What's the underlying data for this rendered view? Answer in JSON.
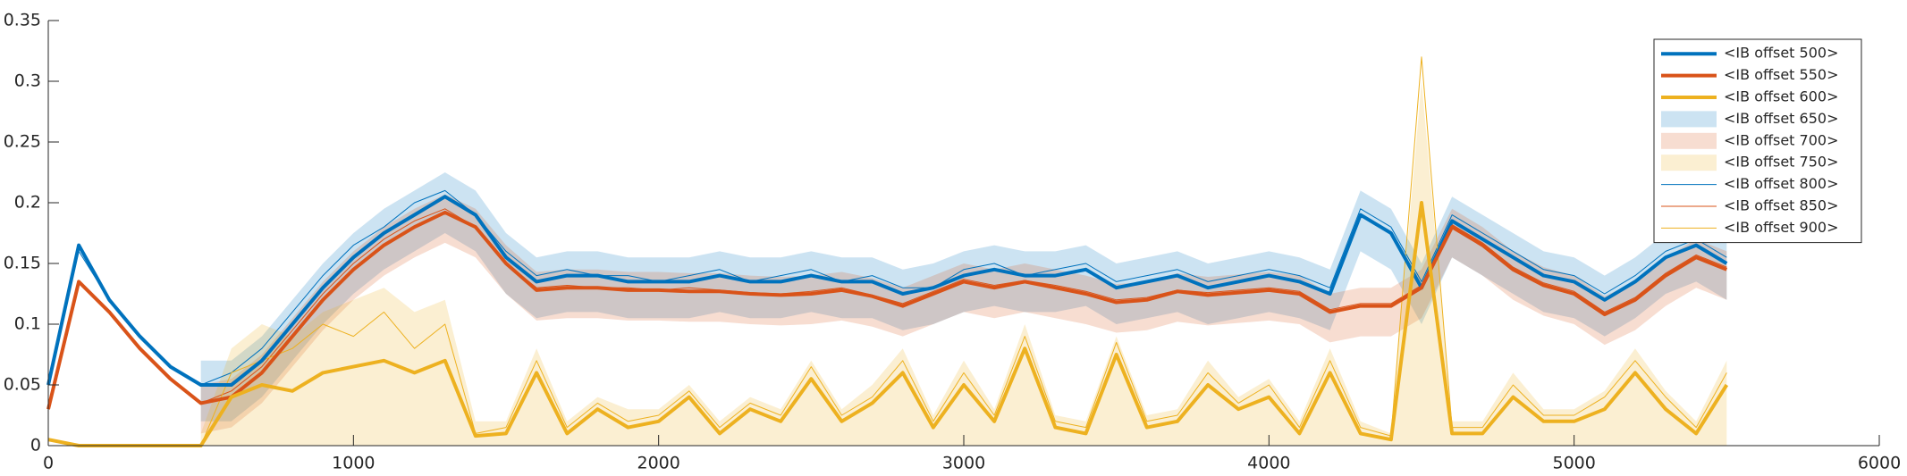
{
  "chart_data": {
    "type": "line",
    "x": [
      0,
      100,
      200,
      300,
      400,
      500,
      600,
      700,
      800,
      900,
      1000,
      1100,
      1200,
      1300,
      1400,
      1500,
      1600,
      1700,
      1800,
      1900,
      2000,
      2100,
      2200,
      2300,
      2400,
      2500,
      2600,
      2700,
      2800,
      2900,
      3000,
      3100,
      3200,
      3300,
      3400,
      3500,
      3600,
      3700,
      3800,
      3900,
      4000,
      4100,
      4200,
      4300,
      4400,
      4500,
      4600,
      4700,
      4800,
      4900,
      5000,
      5100,
      5200,
      5300,
      5400,
      5500
    ],
    "xlim": [
      0,
      6000
    ],
    "xticks": [
      0,
      1000,
      2000,
      3000,
      4000,
      5000,
      6000
    ],
    "ylim": [
      0,
      0.35
    ],
    "yticks": [
      0,
      0.05,
      0.1,
      0.15,
      0.2,
      0.25,
      0.3,
      0.35
    ],
    "legend": "upper right",
    "series": [
      {
        "name": "<IB offset 500>",
        "color": "#0072bd",
        "style": "line",
        "width": 4,
        "values": [
          0.05,
          0.165,
          0.12,
          0.09,
          0.065,
          0.05,
          0.05,
          0.07,
          0.1,
          0.13,
          0.155,
          0.175,
          0.19,
          0.205,
          0.19,
          0.155,
          0.135,
          0.14,
          0.14,
          0.135,
          0.135,
          0.135,
          0.14,
          0.135,
          0.135,
          0.14,
          0.135,
          0.135,
          0.125,
          0.13,
          0.14,
          0.145,
          0.14,
          0.14,
          0.145,
          0.13,
          0.135,
          0.14,
          0.13,
          0.135,
          0.14,
          0.135,
          0.125,
          0.19,
          0.175,
          0.13,
          0.185,
          0.17,
          0.155,
          0.14,
          0.135,
          0.12,
          0.135,
          0.155,
          0.165,
          0.15
        ]
      },
      {
        "name": "<IB offset 550>",
        "color": "#d95319",
        "style": "line",
        "width": 4,
        "values": [
          0.03,
          0.135,
          0.11,
          0.08,
          0.055,
          0.035,
          0.04,
          0.06,
          0.09,
          0.12,
          0.145,
          0.165,
          0.18,
          0.192,
          0.18,
          0.15,
          0.128,
          0.13,
          0.13,
          0.128,
          0.128,
          0.127,
          0.127,
          0.125,
          0.124,
          0.125,
          0.128,
          0.123,
          0.115,
          0.125,
          0.135,
          0.13,
          0.135,
          0.13,
          0.125,
          0.118,
          0.12,
          0.127,
          0.124,
          0.126,
          0.128,
          0.125,
          0.11,
          0.115,
          0.115,
          0.13,
          0.18,
          0.165,
          0.145,
          0.132,
          0.125,
          0.108,
          0.12,
          0.14,
          0.155,
          0.145
        ]
      },
      {
        "name": "<IB offset 600>",
        "color": "#edb120",
        "style": "line",
        "width": 4,
        "values": [
          0.005,
          0,
          0,
          0,
          0,
          0,
          0.04,
          0.05,
          0.045,
          0.06,
          0.065,
          0.07,
          0.06,
          0.07,
          0.008,
          0.01,
          0.06,
          0.01,
          0.03,
          0.015,
          0.02,
          0.04,
          0.01,
          0.03,
          0.02,
          0.055,
          0.02,
          0.035,
          0.06,
          0.015,
          0.05,
          0.02,
          0.08,
          0.015,
          0.01,
          0.075,
          0.015,
          0.02,
          0.05,
          0.03,
          0.04,
          0.01,
          0.06,
          0.01,
          0.005,
          0.2,
          0.01,
          0.01,
          0.04,
          0.02,
          0.02,
          0.03,
          0.06,
          0.03,
          0.01,
          0.05
        ]
      },
      {
        "name": "<IB offset 650>",
        "color": "#0072bd",
        "style": "band",
        "alpha": 0.2,
        "high": [
          null,
          null,
          null,
          null,
          null,
          0.07,
          0.07,
          0.09,
          0.12,
          0.15,
          0.175,
          0.195,
          0.21,
          0.225,
          0.21,
          0.175,
          0.155,
          0.16,
          0.16,
          0.155,
          0.155,
          0.155,
          0.16,
          0.155,
          0.155,
          0.16,
          0.155,
          0.155,
          0.145,
          0.15,
          0.16,
          0.165,
          0.16,
          0.16,
          0.165,
          0.15,
          0.155,
          0.16,
          0.15,
          0.155,
          0.16,
          0.155,
          0.145,
          0.21,
          0.195,
          0.15,
          0.205,
          0.19,
          0.175,
          0.16,
          0.155,
          0.14,
          0.155,
          0.175,
          0.185,
          0.17
        ],
        "low": [
          null,
          null,
          null,
          null,
          null,
          0.02,
          0.02,
          0.04,
          0.07,
          0.1,
          0.125,
          0.145,
          0.16,
          0.175,
          0.16,
          0.125,
          0.105,
          0.11,
          0.11,
          0.105,
          0.105,
          0.105,
          0.11,
          0.105,
          0.105,
          0.11,
          0.105,
          0.105,
          0.095,
          0.1,
          0.11,
          0.115,
          0.11,
          0.11,
          0.115,
          0.1,
          0.105,
          0.11,
          0.1,
          0.105,
          0.11,
          0.105,
          0.095,
          0.16,
          0.145,
          0.1,
          0.155,
          0.14,
          0.125,
          0.11,
          0.105,
          0.09,
          0.105,
          0.125,
          0.135,
          0.12
        ]
      },
      {
        "name": "<IB offset 700>",
        "color": "#d95319",
        "style": "band",
        "alpha": 0.2,
        "high": [
          null,
          null,
          null,
          null,
          null,
          0.05,
          0.055,
          0.075,
          0.105,
          0.135,
          0.16,
          0.18,
          0.195,
          0.207,
          0.195,
          0.165,
          0.143,
          0.145,
          0.145,
          0.143,
          0.143,
          0.142,
          0.142,
          0.14,
          0.139,
          0.14,
          0.143,
          0.138,
          0.13,
          0.14,
          0.15,
          0.145,
          0.15,
          0.145,
          0.14,
          0.133,
          0.135,
          0.142,
          0.139,
          0.141,
          0.143,
          0.14,
          0.125,
          0.13,
          0.13,
          0.145,
          0.195,
          0.18,
          0.16,
          0.147,
          0.14,
          0.123,
          0.135,
          0.155,
          0.17,
          0.16
        ],
        "low": [
          null,
          null,
          null,
          null,
          null,
          0.01,
          0.015,
          0.035,
          0.065,
          0.095,
          0.12,
          0.14,
          0.155,
          0.167,
          0.155,
          0.125,
          0.103,
          0.105,
          0.105,
          0.103,
          0.103,
          0.102,
          0.102,
          0.1,
          0.099,
          0.1,
          0.103,
          0.098,
          0.09,
          0.1,
          0.11,
          0.105,
          0.11,
          0.105,
          0.1,
          0.093,
          0.095,
          0.102,
          0.099,
          0.101,
          0.103,
          0.1,
          0.085,
          0.09,
          0.09,
          0.105,
          0.155,
          0.14,
          0.12,
          0.107,
          0.1,
          0.083,
          0.095,
          0.115,
          0.13,
          0.12
        ]
      },
      {
        "name": "<IB offset 750>",
        "color": "#edb120",
        "style": "band",
        "alpha": 0.2,
        "high": [
          null,
          null,
          null,
          null,
          null,
          0.01,
          0.08,
          0.1,
          0.09,
          0.11,
          0.12,
          0.13,
          0.11,
          0.12,
          0.02,
          0.02,
          0.08,
          0.02,
          0.04,
          0.03,
          0.03,
          0.05,
          0.02,
          0.04,
          0.03,
          0.07,
          0.03,
          0.05,
          0.08,
          0.025,
          0.07,
          0.03,
          0.1,
          0.025,
          0.02,
          0.09,
          0.025,
          0.03,
          0.07,
          0.04,
          0.055,
          0.02,
          0.08,
          0.02,
          0.01,
          0.3,
          0.02,
          0.02,
          0.06,
          0.03,
          0.03,
          0.045,
          0.08,
          0.045,
          0.02,
          0.07
        ],
        "low": [
          null,
          null,
          null,
          null,
          null,
          0,
          0,
          0,
          0,
          0,
          0,
          0,
          0,
          0,
          0,
          0,
          0,
          0,
          0,
          0,
          0,
          0,
          0,
          0,
          0,
          0,
          0,
          0,
          0,
          0,
          0,
          0,
          0,
          0,
          0,
          0,
          0,
          0,
          0,
          0,
          0,
          0,
          0,
          0,
          0,
          0,
          0,
          0,
          0,
          0,
          0,
          0,
          0,
          0,
          0,
          0
        ]
      },
      {
        "name": "<IB offset 800>",
        "color": "#0072bd",
        "style": "line",
        "width": 1,
        "values": [
          0.05,
          0.16,
          0.12,
          0.09,
          0.065,
          0.05,
          0.06,
          0.08,
          0.11,
          0.14,
          0.165,
          0.18,
          0.2,
          0.21,
          0.19,
          0.16,
          0.14,
          0.145,
          0.14,
          0.14,
          0.135,
          0.14,
          0.145,
          0.135,
          0.14,
          0.145,
          0.135,
          0.14,
          0.13,
          0.13,
          0.145,
          0.15,
          0.14,
          0.145,
          0.15,
          0.135,
          0.14,
          0.145,
          0.135,
          0.14,
          0.145,
          0.14,
          0.13,
          0.195,
          0.18,
          0.135,
          0.19,
          0.175,
          0.16,
          0.145,
          0.14,
          0.125,
          0.14,
          0.16,
          0.17,
          0.155
        ]
      },
      {
        "name": "<IB offset 850>",
        "color": "#d95319",
        "style": "line",
        "width": 1,
        "values": [
          0.03,
          0.135,
          0.11,
          0.08,
          0.055,
          0.035,
          0.045,
          0.065,
          0.095,
          0.125,
          0.15,
          0.17,
          0.185,
          0.195,
          0.18,
          0.15,
          0.13,
          0.132,
          0.13,
          0.13,
          0.128,
          0.13,
          0.128,
          0.126,
          0.125,
          0.127,
          0.13,
          0.124,
          0.117,
          0.127,
          0.137,
          0.132,
          0.136,
          0.132,
          0.127,
          0.12,
          0.122,
          0.128,
          0.126,
          0.128,
          0.13,
          0.127,
          0.112,
          0.117,
          0.117,
          0.132,
          0.182,
          0.167,
          0.147,
          0.134,
          0.127,
          0.11,
          0.122,
          0.142,
          0.157,
          0.147
        ]
      },
      {
        "name": "<IB offset 900>",
        "color": "#edb120",
        "style": "line",
        "width": 1,
        "values": [
          0.005,
          0,
          0,
          0,
          0,
          0,
          0.06,
          0.07,
          0.08,
          0.1,
          0.09,
          0.11,
          0.08,
          0.1,
          0.01,
          0.015,
          0.07,
          0.015,
          0.035,
          0.02,
          0.025,
          0.045,
          0.015,
          0.035,
          0.025,
          0.065,
          0.025,
          0.04,
          0.07,
          0.02,
          0.06,
          0.025,
          0.09,
          0.02,
          0.015,
          0.085,
          0.02,
          0.025,
          0.06,
          0.035,
          0.05,
          0.015,
          0.07,
          0.015,
          0.008,
          0.32,
          0.015,
          0.015,
          0.05,
          0.025,
          0.025,
          0.04,
          0.07,
          0.04,
          0.015,
          0.06
        ]
      }
    ]
  }
}
